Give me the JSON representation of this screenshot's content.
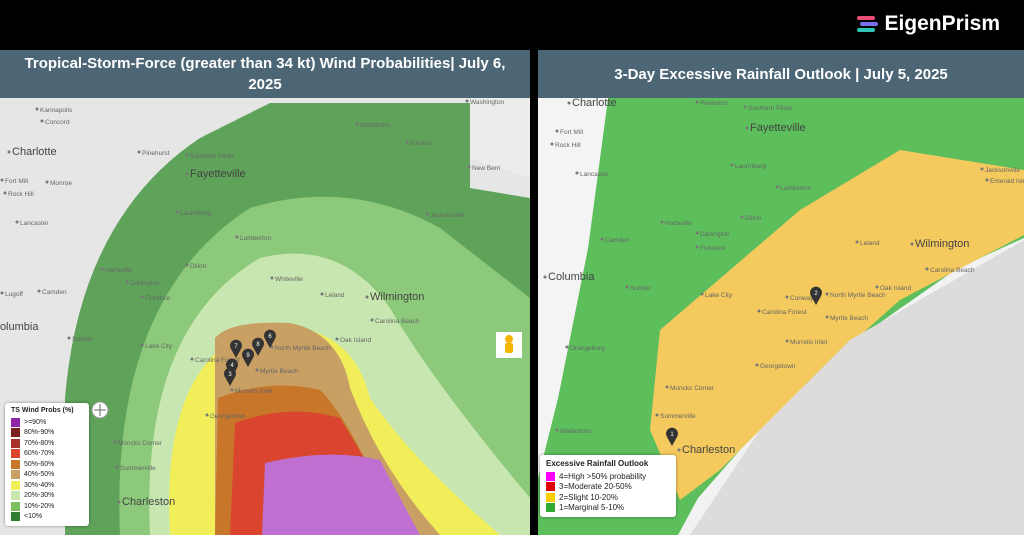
{
  "header": {
    "brand": "EigenPrism"
  },
  "left_panel": {
    "title": "Tropical-Storm-Force (greater than 34 kt) Wind Probabilities| July 6, 2025",
    "places": [
      "Kannapolis",
      "Concord",
      "Charlotte",
      "Fort Mill",
      "Monroe",
      "Rock Hill",
      "Lancaster",
      "Camden",
      "Lugoff",
      "Columbia",
      "Sumter",
      "Pinehurst",
      "Southern Pines",
      "Fayetteville",
      "Goldsboro",
      "Kinston",
      "New Bern",
      "Washington",
      "Jacksonville",
      "Lumberton",
      "Laurinburg",
      "Dillon",
      "Hartsville",
      "Darlington",
      "Florence",
      "Whiteville",
      "Wilmington",
      "Leland",
      "Carolina Beach",
      "Oak Island",
      "Lake City",
      "North Myrtle Beach",
      "Carolina Forest",
      "Myrtle Beach",
      "Murrells Inlet",
      "Georgetown",
      "Moncks Corner",
      "Summerville",
      "Charleston"
    ],
    "pins": [
      "7",
      "8",
      "6",
      "9",
      "4",
      "3"
    ],
    "legend": {
      "title": "TS Wind Probs (%)",
      "items": [
        {
          "label": ">=90%",
          "color": "#8e24aa"
        },
        {
          "label": "80%-90%",
          "color": "#7b1f1f"
        },
        {
          "label": "70%-80%",
          "color": "#a8322a"
        },
        {
          "label": "60%-70%",
          "color": "#d9452f"
        },
        {
          "label": "50%-60%",
          "color": "#c8762a"
        },
        {
          "label": "40%-50%",
          "color": "#c9a063"
        },
        {
          "label": "30%-40%",
          "color": "#f2ee5a"
        },
        {
          "label": "20%-30%",
          "color": "#c8e6b0"
        },
        {
          "label": "10%-20%",
          "color": "#7cbf5f"
        },
        {
          "label": "<10%",
          "color": "#2e7d32"
        }
      ]
    }
  },
  "right_panel": {
    "title": "3-Day Excessive Rainfall Outlook | July 5, 2025",
    "places": [
      "Charlotte",
      "Fort Mill",
      "Rock Hill",
      "Lancaster",
      "Camden",
      "Columbia",
      "Sumter",
      "Orangeburg",
      "Walterboro",
      "Pinehurst",
      "Southern Pines",
      "Fayetteville",
      "Laurinburg",
      "Lumberton",
      "Dillon",
      "Hartsville",
      "Darlington",
      "Florence",
      "Lake City",
      "Conway",
      "North Myrtle Beach",
      "Carolina Forest",
      "Myrtle Beach",
      "Murrells Inlet",
      "Georgetown",
      "Moncks Corner",
      "Summerville",
      "Charleston",
      "Leland",
      "Wilmington",
      "Carolina Beach",
      "Oak Island",
      "Jacksonville",
      "Emerald Isle"
    ],
    "pins": [
      "2",
      "1"
    ],
    "legend": {
      "title": "Excessive Rainfall Outlook",
      "items": [
        {
          "label": "4=High >50% probability",
          "color": "#ff00ff"
        },
        {
          "label": "3=Moderate 20-50%",
          "color": "#e00000"
        },
        {
          "label": "2=Slight 10-20%",
          "color": "#ffcc00"
        },
        {
          "label": "1=Marginal 5-10%",
          "color": "#33aa33"
        }
      ]
    }
  }
}
